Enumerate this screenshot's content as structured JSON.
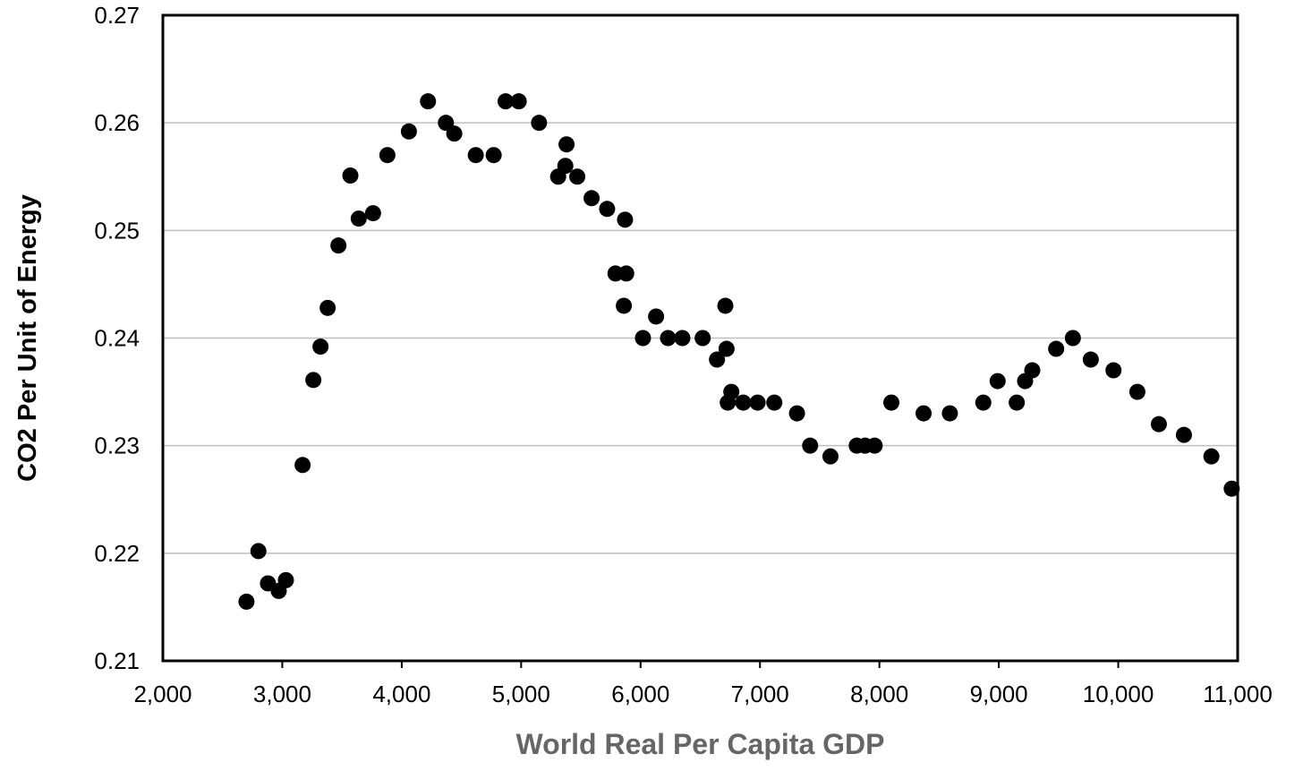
{
  "chart_data": {
    "type": "scatter",
    "title": "",
    "xlabel": "World Real Per Capita GDP",
    "ylabel": "CO2 Per Unit of Energy",
    "xlim": [
      2000,
      11000
    ],
    "ylim": [
      0.21,
      0.27
    ],
    "x_ticks": [
      2000,
      3000,
      4000,
      5000,
      6000,
      7000,
      8000,
      9000,
      10000,
      11000
    ],
    "x_tick_labels": [
      "2,000",
      "3,000",
      "4,000",
      "5,000",
      "6,000",
      "7,000",
      "8,000",
      "9,000",
      "10,000",
      "11,000"
    ],
    "y_ticks": [
      0.21,
      0.22,
      0.23,
      0.24,
      0.25,
      0.26,
      0.27
    ],
    "y_tick_labels": [
      "0.21",
      "0.22",
      "0.23",
      "0.24",
      "0.25",
      "0.26",
      "0.27"
    ],
    "grid": "horizontal",
    "legend": "none",
    "marker_color": "#000000",
    "gridline_color": "#bfbfbf",
    "points": [
      [
        2700,
        0.2155
      ],
      [
        2800,
        0.2202
      ],
      [
        2880,
        0.2172
      ],
      [
        2970,
        0.2165
      ],
      [
        3030,
        0.2175
      ],
      [
        3170,
        0.2282
      ],
      [
        3260,
        0.2361
      ],
      [
        3320,
        0.2392
      ],
      [
        3380,
        0.2428
      ],
      [
        3470,
        0.2486
      ],
      [
        3570,
        0.2551
      ],
      [
        3640,
        0.2511
      ],
      [
        3760,
        0.2516
      ],
      [
        3880,
        0.257
      ],
      [
        4060,
        0.2592
      ],
      [
        4220,
        0.262
      ],
      [
        4370,
        0.26
      ],
      [
        4440,
        0.259
      ],
      [
        4620,
        0.257
      ],
      [
        4770,
        0.257
      ],
      [
        4870,
        0.262
      ],
      [
        4980,
        0.262
      ],
      [
        5150,
        0.26
      ],
      [
        5310,
        0.255
      ],
      [
        5370,
        0.256
      ],
      [
        5380,
        0.258
      ],
      [
        5470,
        0.255
      ],
      [
        5590,
        0.253
      ],
      [
        5720,
        0.252
      ],
      [
        5790,
        0.246
      ],
      [
        5860,
        0.243
      ],
      [
        5870,
        0.251
      ],
      [
        5880,
        0.246
      ],
      [
        6020,
        0.24
      ],
      [
        6130,
        0.242
      ],
      [
        6230,
        0.24
      ],
      [
        6350,
        0.24
      ],
      [
        6520,
        0.24
      ],
      [
        6640,
        0.238
      ],
      [
        6710,
        0.243
      ],
      [
        6720,
        0.239
      ],
      [
        6730,
        0.234
      ],
      [
        6760,
        0.235
      ],
      [
        6860,
        0.234
      ],
      [
        6980,
        0.234
      ],
      [
        7120,
        0.234
      ],
      [
        7310,
        0.233
      ],
      [
        7420,
        0.23
      ],
      [
        7590,
        0.229
      ],
      [
        7810,
        0.23
      ],
      [
        7880,
        0.23
      ],
      [
        7960,
        0.23
      ],
      [
        8100,
        0.234
      ],
      [
        8370,
        0.233
      ],
      [
        8590,
        0.233
      ],
      [
        8870,
        0.234
      ],
      [
        8990,
        0.236
      ],
      [
        9150,
        0.234
      ],
      [
        9220,
        0.236
      ],
      [
        9280,
        0.237
      ],
      [
        9480,
        0.239
      ],
      [
        9620,
        0.24
      ],
      [
        9770,
        0.238
      ],
      [
        9960,
        0.237
      ],
      [
        10160,
        0.235
      ],
      [
        10340,
        0.232
      ],
      [
        10550,
        0.231
      ],
      [
        10780,
        0.229
      ],
      [
        10950,
        0.226
      ]
    ]
  }
}
